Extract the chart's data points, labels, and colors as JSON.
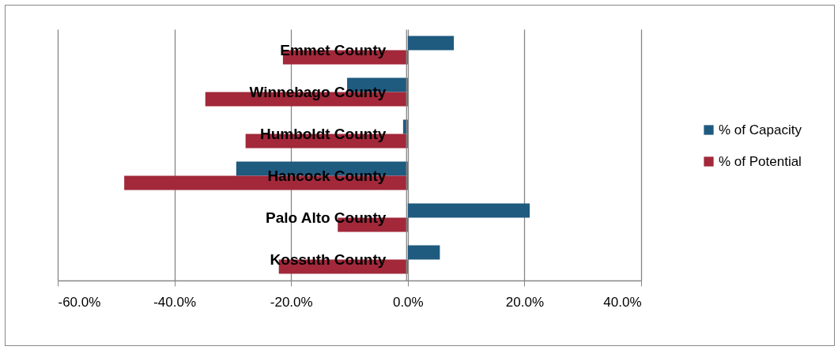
{
  "chart_data": {
    "type": "bar",
    "orientation": "horizontal",
    "categories": [
      "Emmet County",
      "Winnebago County",
      "Humboldt County",
      "Hancock County",
      "Palo Alto County",
      "Kossuth County"
    ],
    "series": [
      {
        "name": "% of Capacity",
        "color": "#1f5a7f",
        "values": [
          7.9,
          -10.4,
          -0.8,
          -29.4,
          20.9,
          5.5
        ]
      },
      {
        "name": "% of Potential",
        "color": "#a2283a",
        "values": [
          -21.4,
          -34.7,
          -27.8,
          -48.6,
          -12.0,
          -22.1
        ]
      }
    ],
    "xlim": [
      -60,
      40
    ],
    "xticks": [
      {
        "value": -60,
        "label": "-60.0%"
      },
      {
        "value": -40,
        "label": "-40.0%"
      },
      {
        "value": -20,
        "label": "-20.0%"
      },
      {
        "value": 0,
        "label": "0.0%"
      },
      {
        "value": 20,
        "label": "20.0%"
      },
      {
        "value": 40,
        "label": "40.0%"
      }
    ],
    "grid": "x",
    "legend": "right"
  }
}
